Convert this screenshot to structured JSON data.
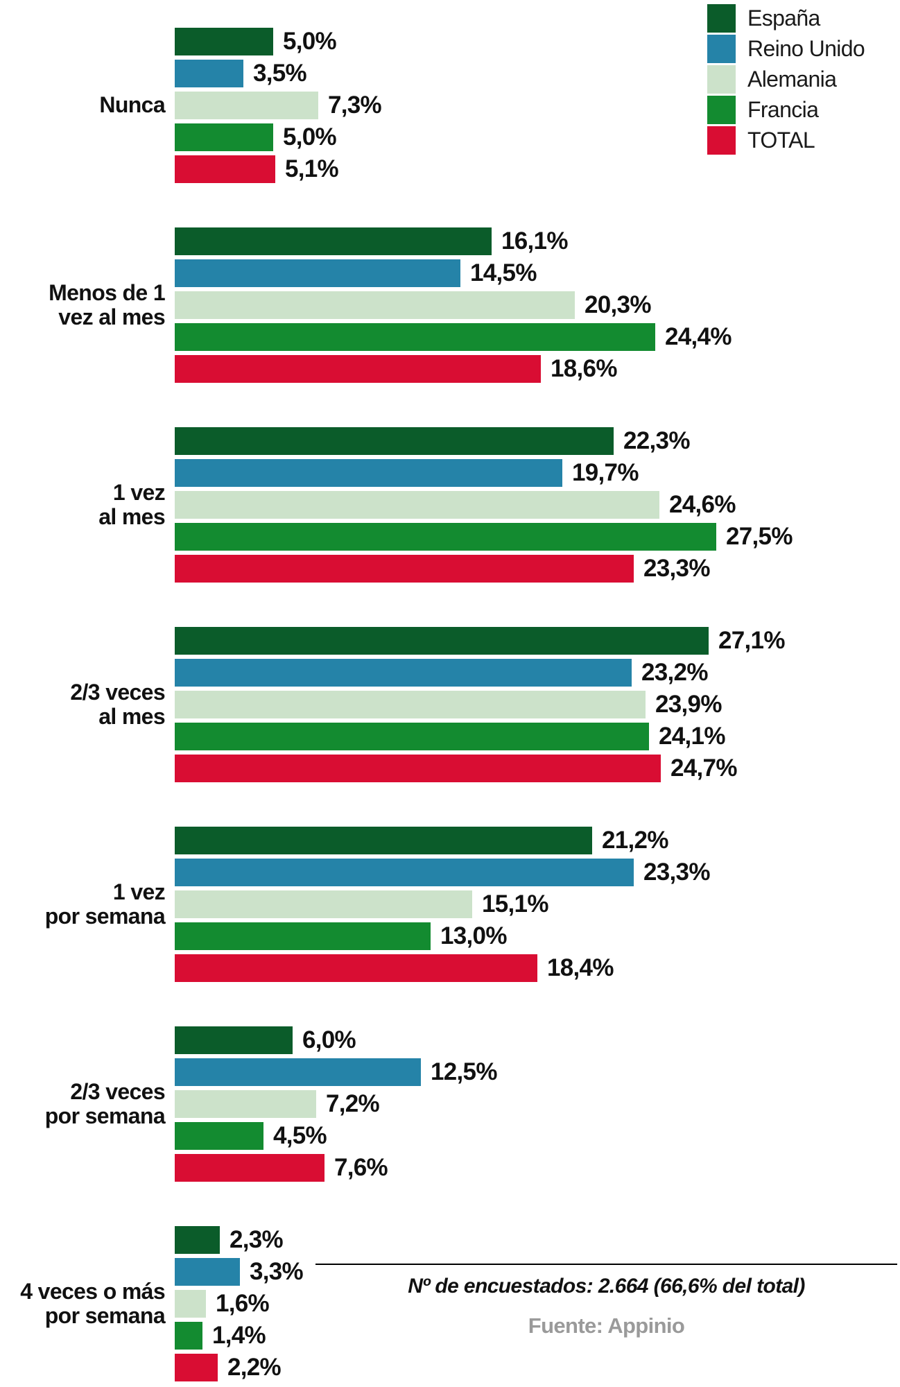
{
  "chart_data": {
    "type": "bar",
    "orientation": "horizontal",
    "unit": "%",
    "xlim": [
      0,
      29
    ],
    "grid": false,
    "legend_position": "top-right",
    "categories": [
      "Nunca",
      "Menos de 1 vez al mes",
      "1 vez al mes",
      "2/3 veces al mes",
      "1 vez por semana",
      "2/3 veces por semana",
      "4 veces o más por semana"
    ],
    "category_lines": [
      [
        "Nunca"
      ],
      [
        "Menos de 1",
        "vez al mes"
      ],
      [
        "1 vez",
        "al mes"
      ],
      [
        "2/3 veces",
        "al mes"
      ],
      [
        "1 vez",
        "por semana"
      ],
      [
        "2/3 veces",
        "por semana"
      ],
      [
        "4 veces o más",
        "por semana"
      ]
    ],
    "series": [
      {
        "name": "España",
        "color": "#0b5c2a",
        "values": [
          5.0,
          16.1,
          22.3,
          27.1,
          21.2,
          6.0,
          2.3
        ],
        "labels": [
          "5,0%",
          "16,1%",
          "22,3%",
          "27,1%",
          "21,2%",
          "6,0%",
          "2,3%"
        ]
      },
      {
        "name": "Reino Unido",
        "color": "#2583a8",
        "values": [
          3.5,
          14.5,
          19.7,
          23.2,
          23.3,
          12.5,
          3.3
        ],
        "labels": [
          "3,5%",
          "14,5%",
          "19,7%",
          "23,2%",
          "23,3%",
          "12,5%",
          "3,3%"
        ]
      },
      {
        "name": "Alemania",
        "color": "#cce2ca",
        "values": [
          7.3,
          20.3,
          24.6,
          23.9,
          15.1,
          7.2,
          1.6
        ],
        "labels": [
          "7,3%",
          "20,3%",
          "24,6%",
          "23,9%",
          "15,1%",
          "7,2%",
          "1,6%"
        ]
      },
      {
        "name": "Francia",
        "color": "#138b30",
        "values": [
          5.0,
          24.4,
          27.5,
          24.1,
          13.0,
          4.5,
          1.4
        ],
        "labels": [
          "5,0%",
          "24,4%",
          "27,5%",
          "24,1%",
          "13,0%",
          "4,5%",
          "1,4%"
        ]
      },
      {
        "name": "TOTAL",
        "color": "#d90d33",
        "values": [
          5.1,
          18.6,
          23.3,
          24.7,
          18.4,
          7.6,
          2.2
        ],
        "labels": [
          "5,1%",
          "18,6%",
          "23,3%",
          "24,7%",
          "18,4%",
          "7,6%",
          "2,2%"
        ]
      }
    ]
  },
  "footer": {
    "note": "Nº de encuestados: 2.664 (66,6% del total)",
    "source": "Fuente: Appinio"
  }
}
